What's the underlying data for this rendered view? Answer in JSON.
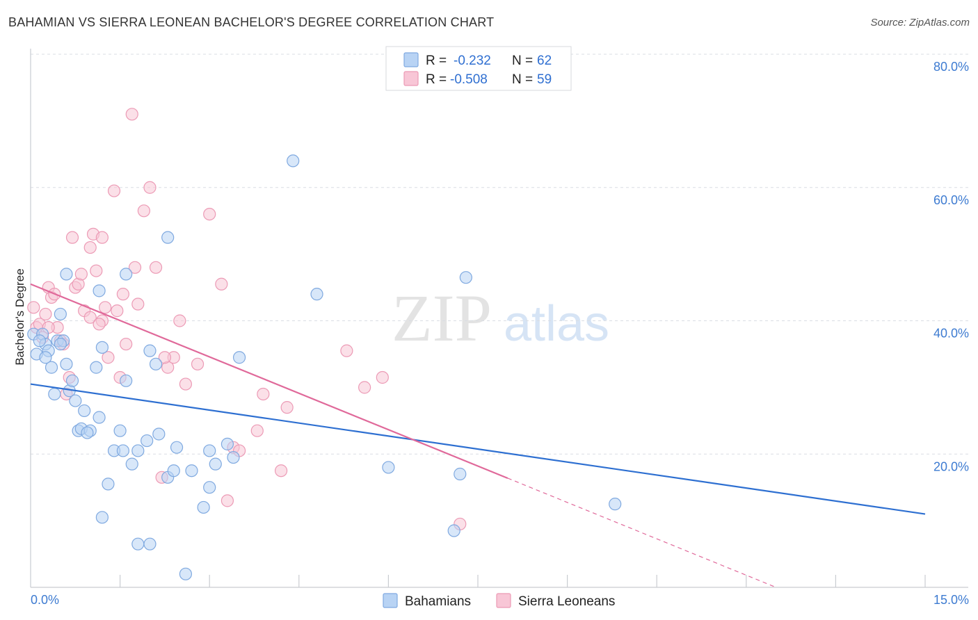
{
  "header": {
    "title": "BAHAMIAN VS SIERRA LEONEAN BACHELOR'S DEGREE CORRELATION CHART",
    "source": "Source: ZipAtlas.com"
  },
  "watermark": {
    "zip": "ZIP",
    "atlas": "atlas"
  },
  "stats_legend": [
    {
      "r_label": "R =",
      "r_value": "-0.232",
      "n_label": "N =",
      "n_value": "62"
    },
    {
      "r_label": "R =",
      "r_value": "-0.508",
      "n_label": "N =",
      "n_value": "59"
    }
  ],
  "colors": {
    "blue_fill": "#b8d3f4",
    "blue_stroke": "#7fa9e0",
    "blue_line": "#2d6fd1",
    "pink_fill": "#f8c6d6",
    "pink_stroke": "#ec9ab5",
    "pink_line": "#e0699a",
    "tick_text": "#3d7bd1",
    "grid": "#d9dde3"
  },
  "chart_data": {
    "type": "scatter",
    "title": "BAHAMIAN VS SIERRA LEONEAN BACHELOR'S DEGREE CORRELATION CHART",
    "xlabel": "",
    "ylabel": "Bachelor's Degree",
    "xlim": [
      0,
      15
    ],
    "ylim": [
      0,
      80
    ],
    "x_tick_labels": [
      "0.0%",
      "15.0%"
    ],
    "y_ticks": [
      20,
      40,
      60,
      80
    ],
    "y_tick_labels": [
      "20.0%",
      "40.0%",
      "60.0%",
      "80.0%"
    ],
    "grid": true,
    "series": [
      {
        "name": "Bahamians",
        "color": "blue",
        "r": -0.232,
        "n": 62,
        "trend": {
          "x0": 0,
          "y0": 30.5,
          "x1": 15,
          "y1": 11.0,
          "dashed_from": null
        },
        "points": [
          [
            0.05,
            38.0
          ],
          [
            0.1,
            35.0
          ],
          [
            0.2,
            38.0
          ],
          [
            0.25,
            36.5
          ],
          [
            0.3,
            35.5
          ],
          [
            0.35,
            33.0
          ],
          [
            0.4,
            29.0
          ],
          [
            0.45,
            37.0
          ],
          [
            0.5,
            41.0
          ],
          [
            0.55,
            37.0
          ],
          [
            0.6,
            33.5
          ],
          [
            0.65,
            29.5
          ],
          [
            0.7,
            31.0
          ],
          [
            0.75,
            28.0
          ],
          [
            0.8,
            23.5
          ],
          [
            0.85,
            23.8
          ],
          [
            0.9,
            26.5
          ],
          [
            1.0,
            23.5
          ],
          [
            1.1,
            33.0
          ],
          [
            1.15,
            25.5
          ],
          [
            1.2,
            36.0
          ],
          [
            1.15,
            44.5
          ],
          [
            1.3,
            15.5
          ],
          [
            1.4,
            20.5
          ],
          [
            1.5,
            23.5
          ],
          [
            1.6,
            31.0
          ],
          [
            1.7,
            18.5
          ],
          [
            1.8,
            20.5
          ],
          [
            1.95,
            22.0
          ],
          [
            2.0,
            35.5
          ],
          [
            2.1,
            33.5
          ],
          [
            2.3,
            16.5
          ],
          [
            2.3,
            52.5
          ],
          [
            2.4,
            17.5
          ],
          [
            2.45,
            21.0
          ],
          [
            2.7,
            17.5
          ],
          [
            2.9,
            12.0
          ],
          [
            3.0,
            15.0
          ],
          [
            3.1,
            18.5
          ],
          [
            3.3,
            21.5
          ],
          [
            3.4,
            19.5
          ],
          [
            3.5,
            34.5
          ],
          [
            4.4,
            64.0
          ],
          [
            4.8,
            44.0
          ],
          [
            6.0,
            18.0
          ],
          [
            7.2,
            17.0
          ],
          [
            7.3,
            46.5
          ],
          [
            9.8,
            12.5
          ],
          [
            1.2,
            10.5
          ],
          [
            1.8,
            6.5
          ],
          [
            2.0,
            6.5
          ],
          [
            2.6,
            2.0
          ],
          [
            7.1,
            8.5
          ],
          [
            0.6,
            47.0
          ],
          [
            1.6,
            47.0
          ],
          [
            0.95,
            23.2
          ],
          [
            0.15,
            37.0
          ],
          [
            0.5,
            36.5
          ],
          [
            0.25,
            34.5
          ],
          [
            1.55,
            20.5
          ],
          [
            2.15,
            23.0
          ],
          [
            3.0,
            20.5
          ]
        ]
      },
      {
        "name": "Sierra Leoneans",
        "color": "pink",
        "r": -0.508,
        "n": 59,
        "trend": {
          "x0": 0,
          "y0": 45.5,
          "x1": 12.5,
          "y1": 0,
          "dashed_from": 8.0
        },
        "points": [
          [
            0.05,
            42.0
          ],
          [
            0.1,
            39.0
          ],
          [
            0.15,
            39.5
          ],
          [
            0.2,
            37.5
          ],
          [
            0.25,
            41.0
          ],
          [
            0.3,
            45.0
          ],
          [
            0.35,
            43.5
          ],
          [
            0.4,
            44.0
          ],
          [
            0.45,
            39.0
          ],
          [
            0.5,
            37.0
          ],
          [
            0.55,
            36.5
          ],
          [
            0.6,
            29.0
          ],
          [
            0.65,
            31.5
          ],
          [
            0.7,
            52.5
          ],
          [
            0.75,
            45.0
          ],
          [
            0.8,
            45.5
          ],
          [
            0.85,
            47.0
          ],
          [
            0.9,
            41.5
          ],
          [
            1.0,
            51.0
          ],
          [
            1.05,
            53.0
          ],
          [
            1.1,
            47.5
          ],
          [
            1.2,
            52.5
          ],
          [
            1.2,
            40.0
          ],
          [
            1.25,
            42.0
          ],
          [
            1.3,
            34.5
          ],
          [
            1.4,
            59.5
          ],
          [
            1.5,
            31.5
          ],
          [
            1.55,
            44.0
          ],
          [
            1.6,
            36.5
          ],
          [
            1.7,
            71.0
          ],
          [
            1.75,
            48.0
          ],
          [
            1.8,
            42.5
          ],
          [
            1.9,
            56.5
          ],
          [
            2.0,
            60.0
          ],
          [
            2.1,
            48.0
          ],
          [
            2.2,
            16.5
          ],
          [
            2.3,
            33.0
          ],
          [
            2.4,
            34.5
          ],
          [
            2.5,
            40.0
          ],
          [
            2.6,
            30.5
          ],
          [
            2.8,
            33.5
          ],
          [
            3.0,
            56.0
          ],
          [
            3.2,
            45.5
          ],
          [
            3.3,
            13.0
          ],
          [
            3.4,
            21.0
          ],
          [
            3.5,
            20.5
          ],
          [
            3.8,
            23.5
          ],
          [
            3.9,
            29.0
          ],
          [
            4.2,
            17.5
          ],
          [
            4.3,
            27.0
          ],
          [
            5.3,
            35.5
          ],
          [
            5.6,
            30.0
          ],
          [
            5.9,
            31.5
          ],
          [
            7.2,
            9.5
          ],
          [
            1.45,
            41.5
          ],
          [
            1.0,
            40.5
          ],
          [
            0.3,
            39.0
          ],
          [
            2.25,
            34.5
          ],
          [
            1.15,
            39.5
          ]
        ]
      }
    ]
  }
}
